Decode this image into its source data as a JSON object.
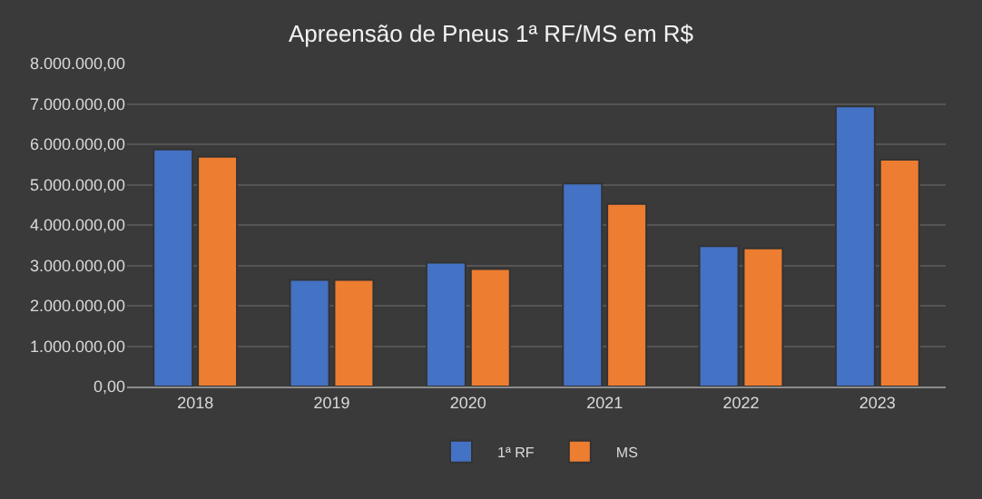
{
  "chart_data": {
    "type": "bar",
    "title": "Apreensão de Pneus 1ª RF/MS em R$",
    "categories": [
      "2018",
      "2019",
      "2020",
      "2021",
      "2022",
      "2023"
    ],
    "series": [
      {
        "name": "1ª RF",
        "color": "#4472c4",
        "values": [
          5870000,
          2640000,
          3070000,
          5030000,
          3480000,
          6940000
        ]
      },
      {
        "name": "MS",
        "color": "#ed7d31",
        "values": [
          5690000,
          2640000,
          2910000,
          4520000,
          3420000,
          5620000
        ]
      }
    ],
    "ylim": [
      0,
      8000000
    ],
    "yticks": [
      {
        "value": 0,
        "label": "0,00"
      },
      {
        "value": 1000000,
        "label": "1.000.000,00"
      },
      {
        "value": 2000000,
        "label": "2.000.000,00"
      },
      {
        "value": 3000000,
        "label": "3.000.000,00"
      },
      {
        "value": 4000000,
        "label": "4.000.000,00"
      },
      {
        "value": 5000000,
        "label": "5.000.000,00"
      },
      {
        "value": 6000000,
        "label": "6.000.000,00"
      },
      {
        "value": 7000000,
        "label": "7.000.000,00"
      },
      {
        "value": 8000000,
        "label": "8.000.000,00"
      }
    ],
    "grid": "y",
    "legend": "bottom"
  }
}
